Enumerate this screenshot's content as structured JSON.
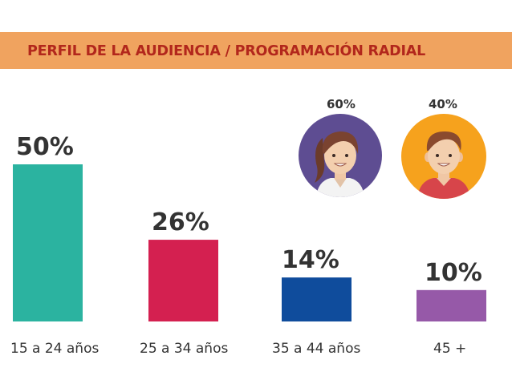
{
  "header": {
    "title": "PERFIL DE LA AUDIENCIA / PROGRAMACIÓN RADIAL",
    "band_color": "#f0a35f",
    "title_color": "#b2271c"
  },
  "audience_gender": {
    "female": {
      "label": "60%",
      "icon": "woman-avatar-icon",
      "bg_color": "#5e4d92"
    },
    "male": {
      "label": "40%",
      "icon": "man-avatar-icon",
      "bg_color": "#f6a21d"
    }
  },
  "chart_data": {
    "type": "bar",
    "title": "",
    "xlabel": "",
    "ylabel": "",
    "ylim": [
      0,
      50
    ],
    "categories": [
      "15 a 24 años",
      "25 a 34 años",
      "35 a 44 años",
      "45 +"
    ],
    "values": [
      50,
      26,
      14,
      10
    ],
    "value_labels": [
      "50%",
      "26%",
      "14%",
      "10%"
    ],
    "colors": [
      "#2bb3a0",
      "#d42050",
      "#0f4c9c",
      "#9659a8"
    ],
    "grid": false,
    "legend": "none"
  }
}
